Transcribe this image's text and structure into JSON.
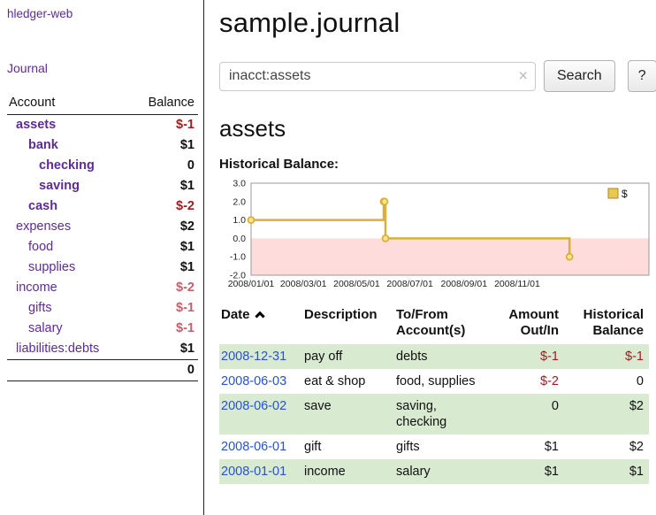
{
  "colors": {
    "link_purple": "#5e2b97",
    "link_blue": "#2a52cc",
    "negative_strong": "#9e1b1e",
    "negative_light": "#c2606b",
    "row_green": "#d8ead0",
    "chart_line_gold": "#d8b13c",
    "chart_negative_region": "#ffdcdc"
  },
  "app": {
    "title": "hledger-web"
  },
  "sidebar": {
    "journal_link": "Journal",
    "accounts_table": {
      "col_account": "Account",
      "col_balance": "Balance",
      "rows": [
        {
          "name": "assets",
          "balance": "$-1"
        },
        {
          "name": "bank",
          "balance": "$1"
        },
        {
          "name": "checking",
          "balance": "0"
        },
        {
          "name": "saving",
          "balance": "$1"
        },
        {
          "name": "cash",
          "balance": "$-2"
        },
        {
          "name": "expenses",
          "balance": "$2"
        },
        {
          "name": "food",
          "balance": "$1"
        },
        {
          "name": "supplies",
          "balance": "$1"
        },
        {
          "name": "income",
          "balance": "$-2"
        },
        {
          "name": "gifts",
          "balance": "$-1"
        },
        {
          "name": "salary",
          "balance": "$-1"
        },
        {
          "name": "liabilities:debts",
          "balance": "$1"
        }
      ],
      "total": "0"
    }
  },
  "main": {
    "title": "sample.journal",
    "search": {
      "value": "inacct:assets",
      "clear_icon": "×",
      "search_button": "Search",
      "help_button": "?"
    },
    "account_heading": "assets",
    "chart_title": "Historical Balance:"
  },
  "chart_data": {
    "type": "line",
    "step": true,
    "title": "Historical Balance",
    "series": [
      {
        "name": "$",
        "points": [
          [
            "2008-01-01",
            1
          ],
          [
            "2008-06-01",
            2
          ],
          [
            "2008-06-02",
            2
          ],
          [
            "2008-06-03",
            0
          ],
          [
            "2008-12-31",
            -1
          ]
        ]
      }
    ],
    "ylim": [
      -2,
      3
    ],
    "yticks": [
      3.0,
      2.0,
      1.0,
      0.0,
      -1.0,
      -2.0
    ],
    "xticks": [
      {
        "date": "2008-01-01",
        "label": "2008/01/01"
      },
      {
        "date": "2008-03-01",
        "label": "2008/03/01"
      },
      {
        "date": "2008-05-01",
        "label": "2008/05/01"
      },
      {
        "date": "2008-07-01",
        "label": "2008/07/01"
      },
      {
        "date": "2008-09-01",
        "label": "2008/09/01"
      },
      {
        "date": "2008-11-01",
        "label": "2008/11/01"
      }
    ],
    "x_domain": [
      "2008-01-01",
      "2009-04-01"
    ],
    "legend": {
      "label": "$",
      "position": "top-right"
    },
    "line_color": "#d8b13c",
    "marker_fill": "#f8e48e",
    "negative_region_color": "#ffdcdc"
  },
  "register": {
    "columns": {
      "date": "Date",
      "description": "Description",
      "accounts": "To/From Account(s)",
      "amount": "Amount Out/In",
      "balance": "Historical Balance"
    },
    "rows": [
      {
        "date": "2008-12-31",
        "description": "pay off",
        "accounts": "debts",
        "amount": "$-1",
        "balance": "$-1"
      },
      {
        "date": "2008-06-03",
        "description": "eat & shop",
        "accounts": "food, supplies",
        "amount": "$-2",
        "balance": "0"
      },
      {
        "date": "2008-06-02",
        "description": "save",
        "accounts": "saving, checking",
        "amount": "0",
        "balance": "$2"
      },
      {
        "date": "2008-06-01",
        "description": "gift",
        "accounts": "gifts",
        "amount": "$1",
        "balance": "$2"
      },
      {
        "date": "2008-01-01",
        "description": "income",
        "accounts": "salary",
        "amount": "$1",
        "balance": "$1"
      }
    ]
  }
}
